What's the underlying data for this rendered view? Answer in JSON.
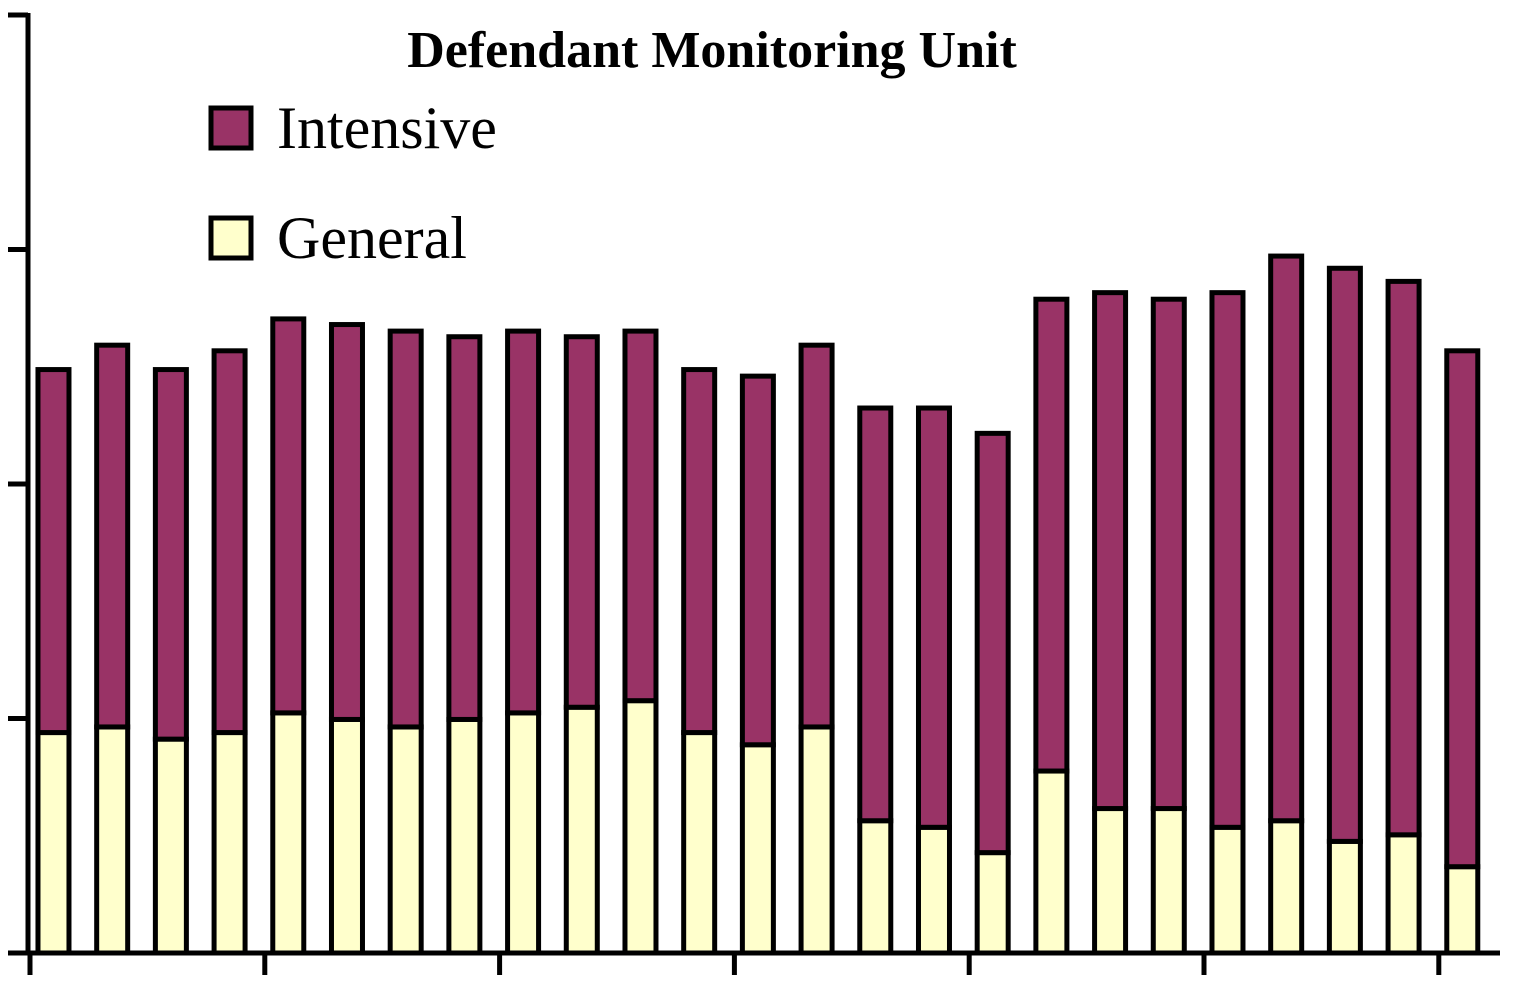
{
  "chart_data": {
    "type": "stacked-bar",
    "title": "Defendant Monitoring Unit",
    "categories": [
      null,
      null,
      null,
      null,
      null,
      null,
      null,
      null,
      null,
      null,
      null,
      null,
      null,
      null,
      null,
      null,
      null,
      null,
      null,
      null,
      null,
      null,
      null,
      null,
      null
    ],
    "series": [
      {
        "name": "General",
        "color": "#ffffcc",
        "values": [
          23.5,
          24.1,
          22.8,
          23.5,
          25.6,
          24.9,
          24.1,
          24.9,
          25.6,
          26.2,
          26.9,
          23.5,
          22.2,
          24.1,
          14.1,
          13.4,
          10.7,
          19.4,
          15.4,
          15.4,
          13.4,
          14.1,
          11.9,
          12.6,
          9.2
        ]
      },
      {
        "name": "Intensive",
        "color": "#993366",
        "values": [
          38.7,
          40.7,
          39.4,
          40.7,
          42.0,
          42.1,
          42.2,
          40.8,
          40.7,
          39.5,
          39.4,
          38.7,
          39.3,
          40.7,
          44.0,
          44.7,
          44.7,
          50.3,
          55.0,
          54.3,
          57.0,
          60.2,
          61.1,
          59.0,
          55.0
        ]
      }
    ],
    "ylim": [
      0,
      100
    ],
    "yticks": [
      0,
      25,
      50,
      75,
      100
    ]
  }
}
